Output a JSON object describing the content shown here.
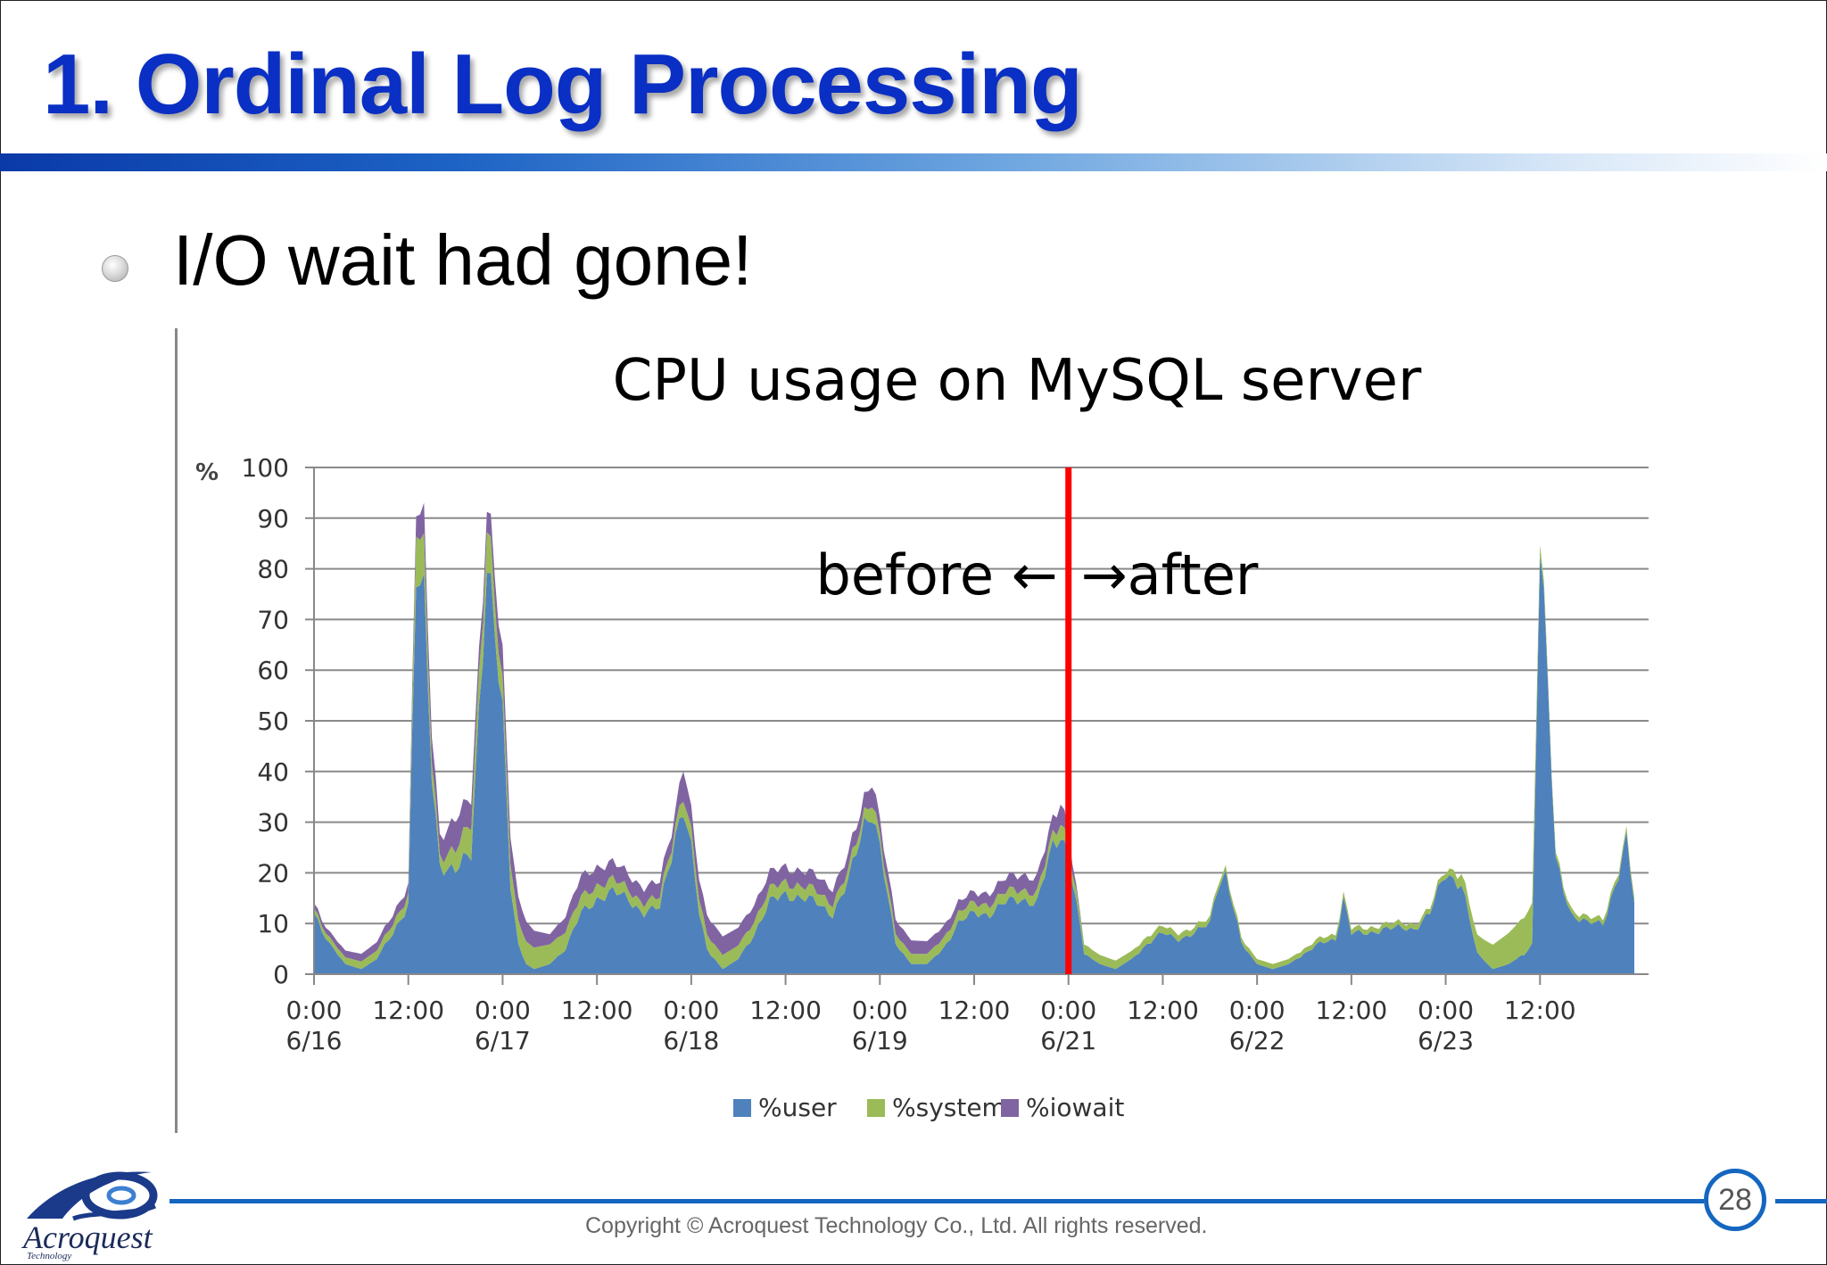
{
  "slide": {
    "title": "1. Ordinal Log Processing",
    "bullet": "I/O wait had gone!",
    "page_number": "28",
    "copyright": "Copyright © Acroquest Technology Co., Ltd. All rights reserved.",
    "logo_name": "Acroquest",
    "logo_subtitle": "Technology"
  },
  "colors": {
    "title": "#0a2fc4",
    "user": "#4f81bd",
    "system": "#9bbb59",
    "iowait": "#8064a2",
    "divider": "#ff0000",
    "footer": "#1566c0"
  },
  "chart_data": {
    "type": "area",
    "stacked": true,
    "title": "CPU usage on MySQL server",
    "ylabel": "%",
    "ylim": [
      0,
      100
    ],
    "yticks": [
      0,
      10,
      20,
      30,
      40,
      50,
      60,
      70,
      80,
      90,
      100
    ],
    "grid": true,
    "legend_position": "bottom",
    "xaxis_unit": "hours since 0:00 6/16",
    "x_ticks": [
      {
        "time": "0:00",
        "date": "6/16"
      },
      {
        "time": "12:00",
        "date": ""
      },
      {
        "time": "0:00",
        "date": "6/17"
      },
      {
        "time": "12:00",
        "date": ""
      },
      {
        "time": "0:00",
        "date": "6/18"
      },
      {
        "time": "12:00",
        "date": ""
      },
      {
        "time": "0:00",
        "date": "6/19"
      },
      {
        "time": "12:00",
        "date": ""
      },
      {
        "time": "0:00",
        "date": "6/21"
      },
      {
        "time": "12:00",
        "date": ""
      },
      {
        "time": "0:00",
        "date": "6/22"
      },
      {
        "time": "12:00",
        "date": ""
      },
      {
        "time": "0:00",
        "date": "6/23"
      },
      {
        "time": "12:00",
        "date": ""
      }
    ],
    "annotation": {
      "before": "before ←",
      "after": "→after",
      "at_tick_index": 8
    },
    "series": [
      {
        "name": "%user",
        "color": "#4f81bd",
        "x": [
          0,
          2,
          4,
          6,
          8,
          10,
          12,
          13,
          14,
          15,
          16,
          18,
          20,
          22,
          24,
          25,
          26,
          27,
          28,
          30,
          32,
          34,
          36,
          38,
          40,
          42,
          44,
          46,
          47,
          48,
          49,
          50,
          52,
          54,
          56,
          58,
          60,
          62,
          64,
          66,
          68,
          70,
          71,
          72,
          73,
          74,
          76,
          78,
          80,
          82,
          84,
          86,
          88,
          90,
          92,
          94,
          95,
          96,
          97,
          98,
          100,
          102,
          104,
          106,
          108,
          110,
          112,
          114,
          115,
          116,
          118,
          120,
          122,
          124,
          126,
          128,
          130,
          131,
          132,
          134,
          136,
          138,
          140,
          142,
          144,
          146,
          148,
          150,
          152,
          154,
          155,
          156,
          158,
          160,
          162,
          164,
          166,
          167,
          168
        ],
        "values": [
          12,
          6,
          2,
          1,
          3,
          8,
          14,
          78,
          72,
          40,
          22,
          20,
          24,
          82,
          50,
          18,
          6,
          2,
          1,
          2,
          5,
          12,
          15,
          16,
          15,
          12,
          13,
          28,
          33,
          24,
          12,
          5,
          1,
          3,
          8,
          14,
          16,
          15,
          14,
          12,
          18,
          30,
          33,
          25,
          15,
          6,
          2,
          2,
          5,
          10,
          12,
          12,
          14,
          15,
          14,
          25,
          28,
          24,
          14,
          4,
          2,
          1,
          3,
          6,
          8,
          7,
          8,
          10,
          18,
          20,
          6,
          2,
          1,
          2,
          4,
          6,
          7,
          15,
          8,
          8,
          9,
          9,
          9,
          12,
          20,
          18,
          4,
          1,
          2,
          4,
          6,
          88,
          22,
          12,
          10,
          10,
          20,
          26,
          14
        ]
      },
      {
        "name": "%system",
        "color": "#9bbb59",
        "x": [
          0,
          12,
          13,
          14,
          15,
          16,
          22,
          24,
          40,
          46,
          47,
          70,
          71,
          72,
          94,
          95,
          96,
          115,
          116,
          130,
          131,
          142,
          144,
          155,
          156,
          158,
          166,
          167,
          168
        ],
        "values": [
          1,
          2,
          10,
          8,
          4,
          2,
          8,
          5,
          2,
          2,
          3,
          2,
          3,
          2,
          2,
          3,
          2,
          1,
          1,
          1,
          1,
          1,
          1,
          8,
          2,
          1,
          1,
          1,
          1
        ]
      },
      {
        "name": "%iowait",
        "color": "#8064a2",
        "x": [
          0,
          12,
          13,
          14,
          15,
          16,
          18,
          22,
          24,
          30,
          34,
          40,
          46,
          47,
          48,
          60,
          66,
          70,
          71,
          72,
          84,
          90,
          94,
          95,
          96,
          97,
          98,
          168
        ],
        "values": [
          1,
          2,
          4,
          6,
          5,
          4,
          6,
          4,
          6,
          2,
          4,
          3,
          3,
          6,
          4,
          3,
          3,
          3,
          4,
          3,
          2,
          3,
          3,
          4,
          3,
          1,
          0,
          0
        ]
      }
    ]
  }
}
